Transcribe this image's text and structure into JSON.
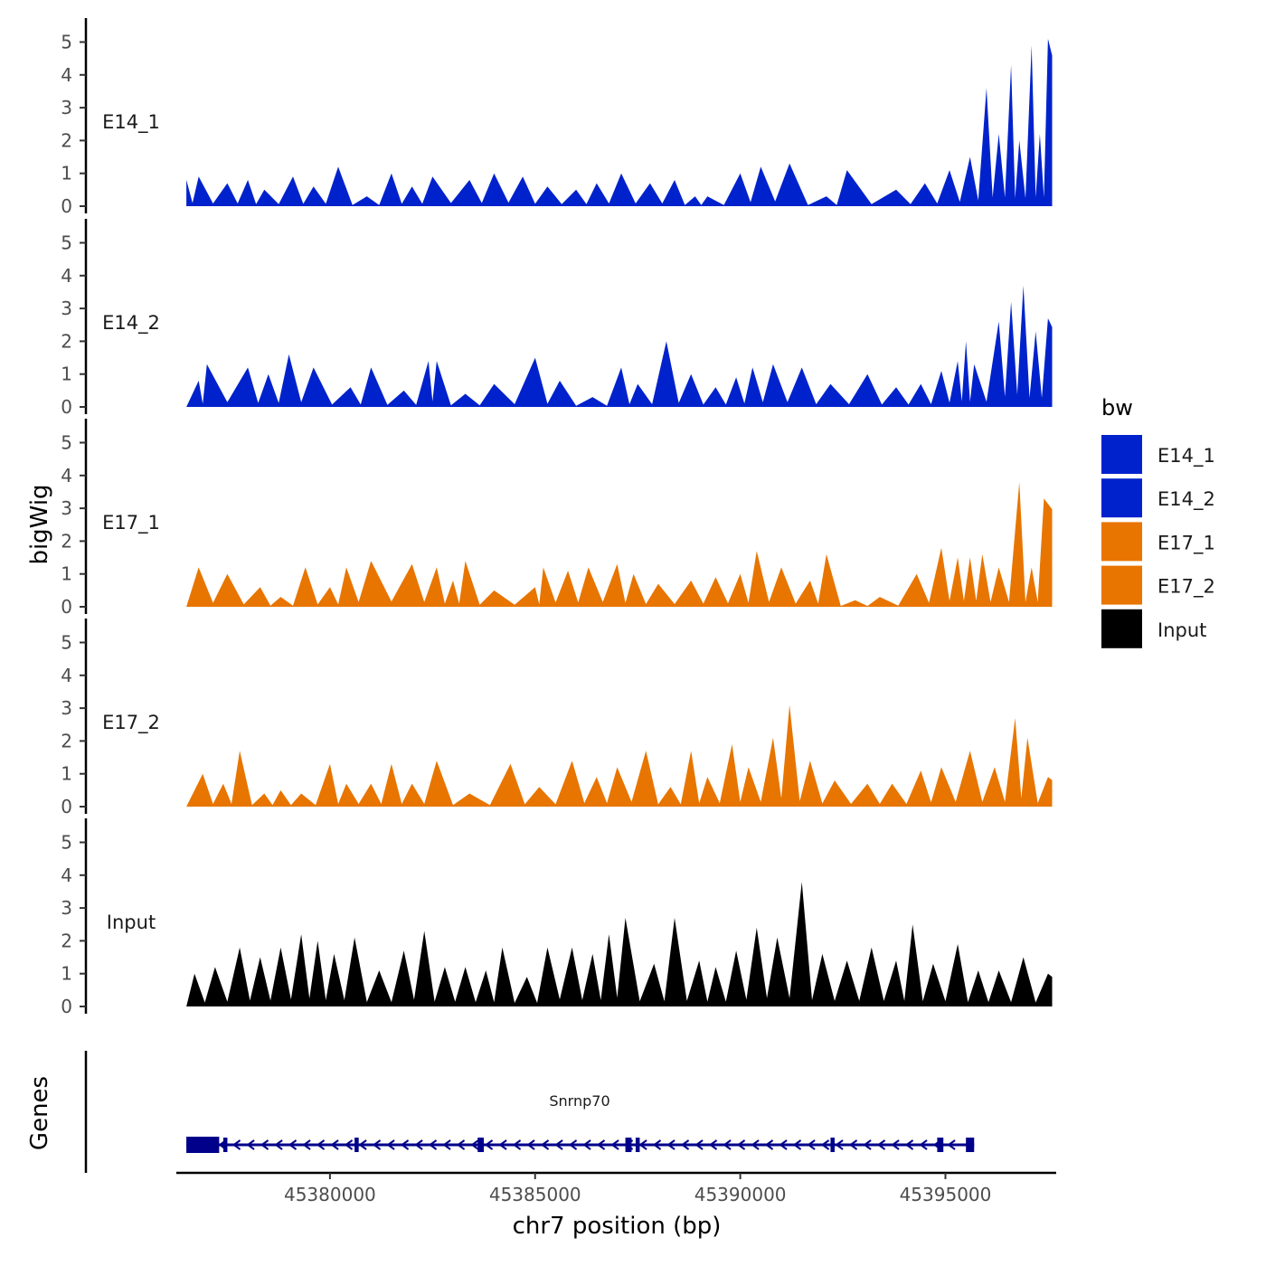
{
  "chart_data": {
    "type": "area",
    "y_axis_title": "bigWig",
    "x_axis_title": "chr7 position (bp)",
    "xlim": [
      45376300,
      45397700
    ],
    "ylim": [
      0,
      5.3
    ],
    "y_ticks": [
      0,
      1,
      2,
      3,
      4,
      5
    ],
    "x_ticks": [
      45380000,
      45385000,
      45390000,
      45395000
    ],
    "x_tick_labels": [
      "45380000",
      "45385000",
      "45390000",
      "45395000"
    ],
    "legend": {
      "title": "bw",
      "position": "right",
      "entries": [
        {
          "name": "E14_1",
          "color": "#0022cc"
        },
        {
          "name": "E14_2",
          "color": "#0022cc"
        },
        {
          "name": "E17_1",
          "color": "#e87500"
        },
        {
          "name": "E17_2",
          "color": "#e87500"
        },
        {
          "name": "Input",
          "color": "#000000"
        }
      ]
    },
    "tracks": [
      {
        "name": "E14_1",
        "color": "#0022cc",
        "x_start": 45376500,
        "x_end": 45397600,
        "peaks": [
          [
            45376500,
            0.8
          ],
          [
            45376800,
            0.9
          ],
          [
            45377500,
            0.7
          ],
          [
            45378000,
            0.8
          ],
          [
            45378400,
            0.5
          ],
          [
            45379100,
            0.9
          ],
          [
            45379600,
            0.6
          ],
          [
            45380200,
            1.2
          ],
          [
            45380900,
            0.3
          ],
          [
            45381500,
            1.0
          ],
          [
            45382000,
            0.6
          ],
          [
            45382500,
            0.9
          ],
          [
            45383400,
            0.8
          ],
          [
            45384000,
            1.0
          ],
          [
            45384700,
            0.9
          ],
          [
            45385300,
            0.6
          ],
          [
            45386000,
            0.5
          ],
          [
            45386500,
            0.7
          ],
          [
            45387100,
            1.0
          ],
          [
            45387800,
            0.7
          ],
          [
            45388400,
            0.8
          ],
          [
            45388900,
            0.3
          ],
          [
            45389200,
            0.3
          ],
          [
            45390000,
            1.0
          ],
          [
            45390500,
            1.2
          ],
          [
            45391200,
            1.3
          ],
          [
            45392100,
            0.3
          ],
          [
            45392600,
            1.1
          ],
          [
            45393800,
            0.5
          ],
          [
            45394500,
            0.7
          ],
          [
            45395100,
            1.1
          ],
          [
            45395600,
            1.5
          ],
          [
            45396000,
            3.6
          ],
          [
            45396300,
            2.2
          ],
          [
            45396600,
            4.3
          ],
          [
            45396800,
            2.0
          ],
          [
            45397100,
            4.9
          ],
          [
            45397300,
            2.2
          ],
          [
            45397500,
            5.1
          ]
        ]
      },
      {
        "name": "E14_2",
        "color": "#0022cc",
        "x_start": 45376500,
        "x_end": 45397600,
        "peaks": [
          [
            45376800,
            0.8
          ],
          [
            45377000,
            1.3
          ],
          [
            45378000,
            1.2
          ],
          [
            45378500,
            1.0
          ],
          [
            45379000,
            1.6
          ],
          [
            45379600,
            1.2
          ],
          [
            45380500,
            0.6
          ],
          [
            45381000,
            1.2
          ],
          [
            45381800,
            0.5
          ],
          [
            45382400,
            1.4
          ],
          [
            45382600,
            1.4
          ],
          [
            45383300,
            0.4
          ],
          [
            45384000,
            0.7
          ],
          [
            45385000,
            1.5
          ],
          [
            45385600,
            0.8
          ],
          [
            45386400,
            0.3
          ],
          [
            45387100,
            1.2
          ],
          [
            45387500,
            0.7
          ],
          [
            45388200,
            2.0
          ],
          [
            45388800,
            1.0
          ],
          [
            45389400,
            0.6
          ],
          [
            45389900,
            0.9
          ],
          [
            45390300,
            1.2
          ],
          [
            45390800,
            1.3
          ],
          [
            45391500,
            1.2
          ],
          [
            45392200,
            0.7
          ],
          [
            45393100,
            1.0
          ],
          [
            45393800,
            0.6
          ],
          [
            45394400,
            0.7
          ],
          [
            45394900,
            1.1
          ],
          [
            45395300,
            1.4
          ],
          [
            45395500,
            2.0
          ],
          [
            45395700,
            1.3
          ],
          [
            45396300,
            2.6
          ],
          [
            45396600,
            3.2
          ],
          [
            45396900,
            3.7
          ],
          [
            45397200,
            2.3
          ],
          [
            45397500,
            2.7
          ]
        ]
      },
      {
        "name": "E17_1",
        "color": "#e87500",
        "x_start": 45376500,
        "x_end": 45397600,
        "peaks": [
          [
            45376800,
            1.2
          ],
          [
            45377500,
            1.0
          ],
          [
            45378300,
            0.6
          ],
          [
            45378800,
            0.3
          ],
          [
            45379400,
            1.2
          ],
          [
            45380000,
            0.6
          ],
          [
            45380400,
            1.2
          ],
          [
            45381000,
            1.4
          ],
          [
            45382000,
            1.3
          ],
          [
            45382600,
            1.2
          ],
          [
            45383000,
            0.8
          ],
          [
            45383300,
            1.4
          ],
          [
            45384000,
            0.5
          ],
          [
            45385000,
            0.6
          ],
          [
            45385200,
            1.2
          ],
          [
            45385800,
            1.1
          ],
          [
            45386300,
            1.2
          ],
          [
            45387000,
            1.3
          ],
          [
            45387400,
            1.0
          ],
          [
            45388000,
            0.7
          ],
          [
            45388800,
            0.8
          ],
          [
            45389400,
            0.9
          ],
          [
            45390000,
            1.0
          ],
          [
            45390400,
            1.7
          ],
          [
            45391000,
            1.2
          ],
          [
            45391700,
            0.8
          ],
          [
            45392100,
            1.6
          ],
          [
            45392800,
            0.2
          ],
          [
            45393400,
            0.3
          ],
          [
            45394300,
            1.0
          ],
          [
            45394900,
            1.8
          ],
          [
            45395300,
            1.5
          ],
          [
            45395600,
            1.5
          ],
          [
            45395900,
            1.6
          ],
          [
            45396300,
            1.2
          ],
          [
            45396800,
            3.8
          ],
          [
            45397100,
            1.2
          ],
          [
            45397400,
            3.3
          ]
        ]
      },
      {
        "name": "E17_2",
        "color": "#e87500",
        "x_start": 45376500,
        "x_end": 45397600,
        "peaks": [
          [
            45376900,
            1.0
          ],
          [
            45377400,
            0.7
          ],
          [
            45377800,
            1.7
          ],
          [
            45378400,
            0.4
          ],
          [
            45378800,
            0.5
          ],
          [
            45379300,
            0.4
          ],
          [
            45380000,
            1.3
          ],
          [
            45380400,
            0.7
          ],
          [
            45381000,
            0.7
          ],
          [
            45381500,
            1.3
          ],
          [
            45382000,
            0.7
          ],
          [
            45382600,
            1.4
          ],
          [
            45383400,
            0.4
          ],
          [
            45384400,
            1.3
          ],
          [
            45385100,
            0.6
          ],
          [
            45385900,
            1.4
          ],
          [
            45386500,
            0.9
          ],
          [
            45387000,
            1.2
          ],
          [
            45387700,
            1.7
          ],
          [
            45388300,
            0.6
          ],
          [
            45388800,
            1.7
          ],
          [
            45389200,
            0.9
          ],
          [
            45389800,
            1.9
          ],
          [
            45390200,
            1.2
          ],
          [
            45390800,
            2.1
          ],
          [
            45391200,
            3.1
          ],
          [
            45391700,
            1.4
          ],
          [
            45392300,
            0.8
          ],
          [
            45393100,
            0.7
          ],
          [
            45393700,
            0.7
          ],
          [
            45394400,
            1.1
          ],
          [
            45394900,
            1.2
          ],
          [
            45395600,
            1.7
          ],
          [
            45396200,
            1.2
          ],
          [
            45396700,
            2.7
          ],
          [
            45397000,
            2.1
          ],
          [
            45397500,
            0.9
          ]
        ]
      },
      {
        "name": "Input",
        "color": "#000000",
        "x_start": 45376500,
        "x_end": 45397600,
        "peaks": [
          [
            45376700,
            1.0
          ],
          [
            45377200,
            1.2
          ],
          [
            45377800,
            1.8
          ],
          [
            45378300,
            1.5
          ],
          [
            45378800,
            1.8
          ],
          [
            45379300,
            2.2
          ],
          [
            45379700,
            2.0
          ],
          [
            45380100,
            1.6
          ],
          [
            45380600,
            2.1
          ],
          [
            45381200,
            1.1
          ],
          [
            45381800,
            1.7
          ],
          [
            45382300,
            2.3
          ],
          [
            45382800,
            1.2
          ],
          [
            45383300,
            1.2
          ],
          [
            45383800,
            1.1
          ],
          [
            45384200,
            1.8
          ],
          [
            45384800,
            0.9
          ],
          [
            45385300,
            1.8
          ],
          [
            45385900,
            1.8
          ],
          [
            45386400,
            1.6
          ],
          [
            45386800,
            2.2
          ],
          [
            45387200,
            2.7
          ],
          [
            45387900,
            1.3
          ],
          [
            45388400,
            2.7
          ],
          [
            45389000,
            1.4
          ],
          [
            45389400,
            1.2
          ],
          [
            45389900,
            1.7
          ],
          [
            45390400,
            2.4
          ],
          [
            45390900,
            2.1
          ],
          [
            45391500,
            3.8
          ],
          [
            45392000,
            1.6
          ],
          [
            45392600,
            1.4
          ],
          [
            45393200,
            1.8
          ],
          [
            45393800,
            1.4
          ],
          [
            45394200,
            2.5
          ],
          [
            45394700,
            1.3
          ],
          [
            45395300,
            1.9
          ],
          [
            45395800,
            1.1
          ],
          [
            45396300,
            1.1
          ],
          [
            45396900,
            1.5
          ],
          [
            45397500,
            1.0
          ]
        ]
      }
    ],
    "genes_track": {
      "title": "Genes",
      "gene": "Snrnp70",
      "strand": "-",
      "start": 45376500,
      "end": 45395700,
      "color": "#00008b",
      "exons": [
        [
          45376500,
          45377300
        ],
        [
          45377400,
          45377500
        ],
        [
          45380600,
          45380700
        ],
        [
          45383600,
          45383750
        ],
        [
          45387200,
          45387350
        ],
        [
          45387450,
          45387550
        ],
        [
          45392200,
          45392300
        ],
        [
          45394800,
          45394950
        ],
        [
          45395500,
          45395700
        ]
      ]
    }
  }
}
